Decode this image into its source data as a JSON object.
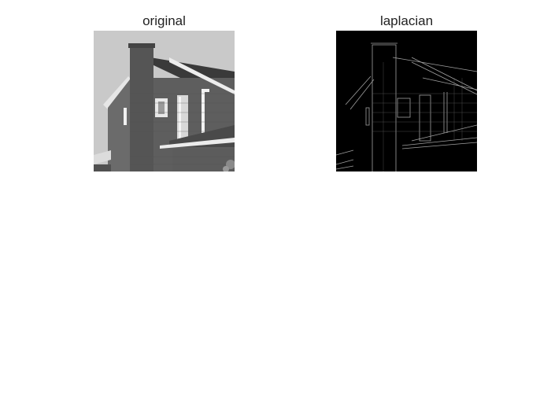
{
  "figure": {
    "panels": [
      {
        "title": "original",
        "image": "grayscale photo of a brick house with chimney",
        "style": "photo"
      },
      {
        "title": "laplacian",
        "image": "edge map of the same house on black background",
        "style": "edges"
      }
    ]
  }
}
